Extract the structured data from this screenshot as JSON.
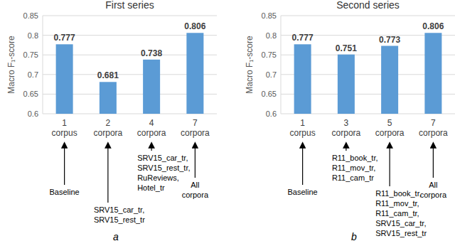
{
  "chart_data": [
    {
      "type": "bar",
      "title": "First series",
      "subtitle": "a",
      "ylabel": "Macro F₁-score",
      "categories": [
        "1 corpus",
        "2 corpora",
        "4 corpora",
        "7 corpora"
      ],
      "values": [
        0.777,
        0.681,
        0.738,
        0.806
      ],
      "color": "#5b9bd5",
      "ylim": [
        0.6,
        0.85
      ],
      "yticks": [
        0.6,
        0.65,
        0.7,
        0.75,
        0.8,
        0.85
      ],
      "grid": true,
      "data_labels": true,
      "annotations": [
        [
          "Baseline"
        ],
        [
          "SRV15_car_tr,",
          "SRV15_rest_tr"
        ],
        [
          "SRV15_car_tr,",
          "SRV15_rest_tr,",
          "RuReviews,",
          "Hotel_tr"
        ],
        [
          "All",
          "corpora"
        ]
      ]
    },
    {
      "type": "bar",
      "title": "Second series",
      "subtitle": "b",
      "ylabel": "Macro F₁-score",
      "categories": [
        "1 corpus",
        "3 corpora",
        "5 corpora",
        "7 corpora"
      ],
      "values": [
        0.777,
        0.751,
        0.773,
        0.806
      ],
      "color": "#5b9bd5",
      "ylim": [
        0.6,
        0.85
      ],
      "yticks": [
        0.6,
        0.65,
        0.7,
        0.75,
        0.8,
        0.85
      ],
      "grid": true,
      "data_labels": true,
      "annotations": [
        [
          "Baseline"
        ],
        [
          "R11_book_tr,",
          "R11_mov_tr,",
          "R11_cam_tr"
        ],
        [
          "R11_book_tr,",
          "R11_mov_tr,",
          "R11_cam_tr,",
          "SRV15_car_tr,",
          "SRV15_rest_tr"
        ],
        [
          "All",
          "corpora"
        ]
      ]
    }
  ]
}
